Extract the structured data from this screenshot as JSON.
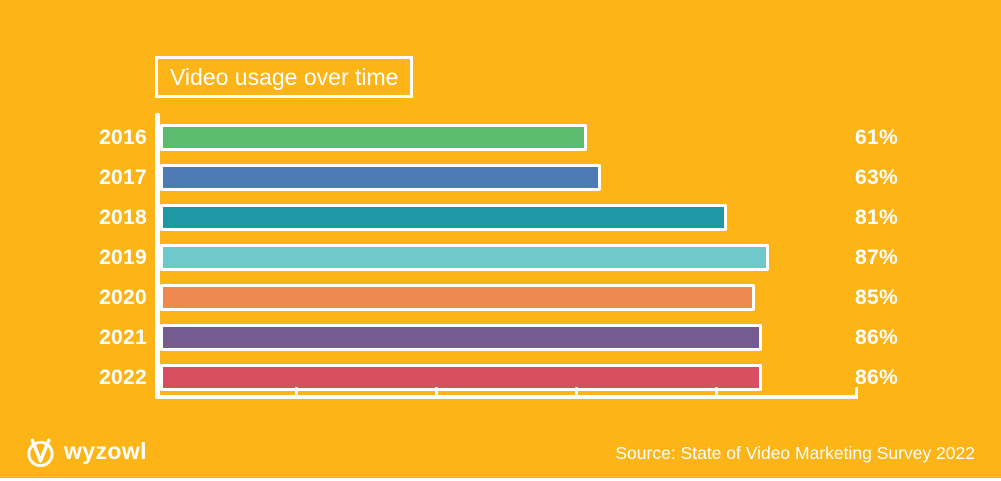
{
  "title": "Video usage over time",
  "footer": {
    "logo_text": "wyzowl",
    "source": "Source: State of Video Marketing Survey 2022"
  },
  "colors": {
    "background": "#FCB417",
    "axis": "#FFFFFF",
    "text": "#FFFFFF"
  },
  "chart_data": {
    "type": "bar",
    "orientation": "horizontal",
    "title": "Video usage over time",
    "categories": [
      "2016",
      "2017",
      "2018",
      "2019",
      "2020",
      "2021",
      "2022"
    ],
    "values": [
      61,
      63,
      81,
      87,
      85,
      86,
      86
    ],
    "value_labels": [
      "61%",
      "63%",
      "81%",
      "87%",
      "85%",
      "86%",
      "86%"
    ],
    "bar_colors": [
      "#5BBB6F",
      "#4E7AB5",
      "#1E98A5",
      "#6FC9CC",
      "#F0894F",
      "#755C90",
      "#D84F62"
    ],
    "xlabel": "",
    "ylabel": "",
    "xlim": [
      0,
      100
    ],
    "x_tick_interval": 20,
    "grid": false,
    "legend": false,
    "value_label_position": "right-outside"
  }
}
